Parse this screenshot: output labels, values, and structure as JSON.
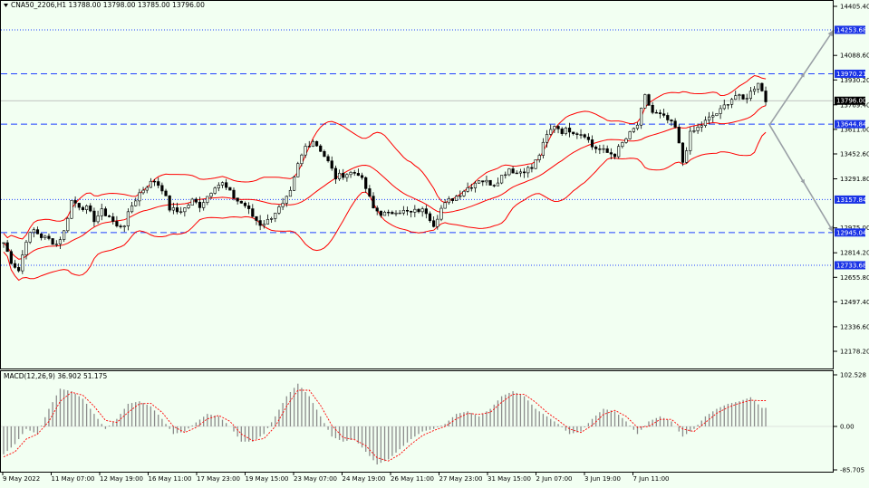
{
  "header": {
    "symbol_info": "CNA50_2206,H1  13788.00 13798.00 13785.00 13796.00",
    "macd_info": "MACD(12,26,9) 36.902 51.175"
  },
  "colors": {
    "background": "#f2fff2",
    "band": "#ff0000",
    "candle": "#000000",
    "level": "#2040ff",
    "label_bg": "#1a33e6",
    "arrow": "#9aa0a6",
    "histogram": "#8c8c8c",
    "signal": "#ff0000"
  },
  "chart_data": [
    {
      "type": "candlestick",
      "symbol": "CNA50_2206",
      "timeframe": "H1",
      "ohlc_last": {
        "open": 13788.0,
        "high": 13798.0,
        "low": 13785.0,
        "close": 13796.0
      },
      "price_axis": {
        "ticks": [
          "14405.40",
          "14088.60",
          "13930.20",
          "13769.40",
          "13611.00",
          "13452.60",
          "13291.80",
          "12975.00",
          "12814.20",
          "12655.80",
          "12497.40",
          "12336.60",
          "12178.20"
        ],
        "ylim": [
          12100,
          14420
        ]
      },
      "time_axis": {
        "ticks": [
          "9 May 2022",
          "11 May 07:00",
          "12 May 19:00",
          "16 May 11:00",
          "17 May 23:00",
          "19 May 15:00",
          "23 May 07:00",
          "24 May 19:00",
          "26 May 11:00",
          "27 May 23:00",
          "31 May 15:00",
          "2 Jun 07:00",
          "3 Jun 19:00",
          "7 Jun 11:00"
        ]
      },
      "levels": [
        {
          "label": "14253.68",
          "style": "dotted"
        },
        {
          "label": "13970.21",
          "style": "dashed"
        },
        {
          "label": "13644.84",
          "style": "dashed"
        },
        {
          "label": "13157.84",
          "style": "dotted"
        },
        {
          "label": "12945.04",
          "style": "dashed"
        },
        {
          "label": "12733.68",
          "style": "dotted"
        }
      ],
      "current_price": "13796.00",
      "close_path": [
        [
          0,
          12880
        ],
        [
          2,
          12760
        ],
        [
          4,
          12700
        ],
        [
          6,
          12900
        ],
        [
          8,
          12960
        ],
        [
          10,
          12920
        ],
        [
          12,
          12900
        ],
        [
          14,
          12870
        ],
        [
          16,
          12950
        ],
        [
          18,
          13150
        ],
        [
          20,
          13120
        ],
        [
          22,
          13100
        ],
        [
          24,
          13030
        ],
        [
          26,
          13080
        ],
        [
          28,
          13050
        ],
        [
          30,
          12980
        ],
        [
          32,
          13000
        ],
        [
          34,
          13120
        ],
        [
          36,
          13200
        ],
        [
          38,
          13250
        ],
        [
          40,
          13280
        ],
        [
          42,
          13230
        ],
        [
          44,
          13100
        ],
        [
          46,
          13080
        ],
        [
          48,
          13100
        ],
        [
          50,
          13150
        ],
        [
          52,
          13120
        ],
        [
          54,
          13180
        ],
        [
          56,
          13250
        ],
        [
          58,
          13260
        ],
        [
          60,
          13200
        ],
        [
          62,
          13150
        ],
        [
          64,
          13120
        ],
        [
          66,
          13050
        ],
        [
          68,
          13000
        ],
        [
          70,
          13020
        ],
        [
          72,
          13080
        ],
        [
          74,
          13120
        ],
        [
          76,
          13200
        ],
        [
          78,
          13380
        ],
        [
          80,
          13500
        ],
        [
          82,
          13540
        ],
        [
          84,
          13480
        ],
        [
          86,
          13400
        ],
        [
          88,
          13300
        ],
        [
          90,
          13320
        ],
        [
          92,
          13330
        ],
        [
          94,
          13330
        ],
        [
          96,
          13230
        ],
        [
          98,
          13100
        ],
        [
          100,
          13070
        ],
        [
          102,
          13060
        ],
        [
          104,
          13090
        ],
        [
          106,
          13080
        ],
        [
          108,
          13070
        ],
        [
          110,
          13090
        ],
        [
          112,
          13080
        ],
        [
          114,
          13000
        ],
        [
          116,
          13100
        ],
        [
          118,
          13150
        ],
        [
          120,
          13180
        ],
        [
          122,
          13220
        ],
        [
          124,
          13250
        ],
        [
          126,
          13290
        ],
        [
          128,
          13270
        ],
        [
          130,
          13260
        ],
        [
          132,
          13310
        ],
        [
          134,
          13360
        ],
        [
          136,
          13330
        ],
        [
          138,
          13350
        ],
        [
          140,
          13360
        ],
        [
          142,
          13450
        ],
        [
          144,
          13570
        ],
        [
          146,
          13640
        ],
        [
          148,
          13600
        ],
        [
          150,
          13610
        ],
        [
          152,
          13590
        ],
        [
          154,
          13580
        ],
        [
          156,
          13500
        ],
        [
          158,
          13480
        ],
        [
          160,
          13460
        ],
        [
          162,
          13450
        ],
        [
          164,
          13520
        ],
        [
          166,
          13580
        ],
        [
          168,
          13640
        ],
        [
          170,
          13820
        ],
        [
          172,
          13720
        ],
        [
          174,
          13700
        ],
        [
          176,
          13670
        ],
        [
          178,
          13620
        ],
        [
          180,
          13400
        ],
        [
          182,
          13580
        ],
        [
          184,
          13620
        ],
        [
          186,
          13660
        ],
        [
          188,
          13700
        ],
        [
          190,
          13730
        ],
        [
          192,
          13790
        ],
        [
          194,
          13830
        ],
        [
          196,
          13800
        ],
        [
          198,
          13850
        ],
        [
          200,
          13920
        ],
        [
          202,
          13796
        ]
      ],
      "arrows": [
        {
          "from": [
            203,
            13640
          ],
          "to": [
            220,
            14253.68
          ],
          "direction": "up"
        },
        {
          "from": [
            203,
            13640
          ],
          "to": [
            220,
            12945.04
          ],
          "direction": "down"
        }
      ]
    },
    {
      "type": "macd",
      "name": "MACD(12,26,9)",
      "macd": 36.902,
      "signal": 51.175,
      "y_ticks": [
        "102.528",
        "0.00",
        "-85.705"
      ],
      "ylim": [
        -85.705,
        102.528
      ],
      "histogram": [
        [
          0,
          -55
        ],
        [
          3,
          -35
        ],
        [
          6,
          -5
        ],
        [
          9,
          -15
        ],
        [
          12,
          35
        ],
        [
          15,
          75
        ],
        [
          18,
          70
        ],
        [
          21,
          55
        ],
        [
          24,
          25
        ],
        [
          27,
          -5
        ],
        [
          30,
          15
        ],
        [
          33,
          45
        ],
        [
          36,
          50
        ],
        [
          39,
          40
        ],
        [
          42,
          15
        ],
        [
          45,
          -15
        ],
        [
          48,
          -10
        ],
        [
          51,
          8
        ],
        [
          54,
          25
        ],
        [
          57,
          20
        ],
        [
          60,
          0
        ],
        [
          63,
          -30
        ],
        [
          66,
          -30
        ],
        [
          69,
          -15
        ],
        [
          72,
          20
        ],
        [
          75,
          60
        ],
        [
          78,
          85
        ],
        [
          81,
          60
        ],
        [
          84,
          20
        ],
        [
          87,
          -20
        ],
        [
          90,
          -30
        ],
        [
          93,
          -25
        ],
        [
          96,
          -50
        ],
        [
          99,
          -75
        ],
        [
          102,
          -65
        ],
        [
          105,
          -45
        ],
        [
          108,
          -25
        ],
        [
          111,
          -10
        ],
        [
          114,
          -5
        ],
        [
          117,
          5
        ],
        [
          120,
          25
        ],
        [
          123,
          30
        ],
        [
          126,
          20
        ],
        [
          129,
          35
        ],
        [
          132,
          60
        ],
        [
          135,
          70
        ],
        [
          138,
          60
        ],
        [
          141,
          35
        ],
        [
          144,
          20
        ],
        [
          147,
          5
        ],
        [
          150,
          -15
        ],
        [
          153,
          -10
        ],
        [
          156,
          15
        ],
        [
          159,
          35
        ],
        [
          162,
          30
        ],
        [
          165,
          10
        ],
        [
          168,
          -15
        ],
        [
          171,
          10
        ],
        [
          174,
          20
        ],
        [
          177,
          10
        ],
        [
          180,
          -20
        ],
        [
          183,
          -5
        ],
        [
          186,
          20
        ],
        [
          189,
          35
        ],
        [
          192,
          45
        ],
        [
          195,
          50
        ],
        [
          198,
          58
        ],
        [
          201,
          36.902
        ]
      ],
      "signal_line": [
        [
          0,
          -60
        ],
        [
          3,
          -50
        ],
        [
          6,
          -25
        ],
        [
          9,
          -15
        ],
        [
          12,
          10
        ],
        [
          15,
          50
        ],
        [
          18,
          68
        ],
        [
          21,
          62
        ],
        [
          24,
          40
        ],
        [
          27,
          12
        ],
        [
          30,
          8
        ],
        [
          33,
          28
        ],
        [
          36,
          45
        ],
        [
          39,
          46
        ],
        [
          42,
          28
        ],
        [
          45,
          0
        ],
        [
          48,
          -12
        ],
        [
          51,
          -2
        ],
        [
          54,
          15
        ],
        [
          57,
          22
        ],
        [
          60,
          10
        ],
        [
          63,
          -15
        ],
        [
          66,
          -28
        ],
        [
          69,
          -24
        ],
        [
          72,
          0
        ],
        [
          75,
          40
        ],
        [
          78,
          72
        ],
        [
          81,
          72
        ],
        [
          84,
          42
        ],
        [
          87,
          2
        ],
        [
          90,
          -22
        ],
        [
          93,
          -26
        ],
        [
          96,
          -38
        ],
        [
          99,
          -62
        ],
        [
          102,
          -68
        ],
        [
          105,
          -55
        ],
        [
          108,
          -35
        ],
        [
          111,
          -18
        ],
        [
          114,
          -8
        ],
        [
          117,
          0
        ],
        [
          120,
          15
        ],
        [
          123,
          26
        ],
        [
          126,
          24
        ],
        [
          129,
          28
        ],
        [
          132,
          48
        ],
        [
          135,
          64
        ],
        [
          138,
          64
        ],
        [
          141,
          48
        ],
        [
          144,
          28
        ],
        [
          147,
          12
        ],
        [
          150,
          -5
        ],
        [
          153,
          -12
        ],
        [
          156,
          2
        ],
        [
          159,
          24
        ],
        [
          162,
          32
        ],
        [
          165,
          20
        ],
        [
          168,
          -2
        ],
        [
          171,
          0
        ],
        [
          174,
          14
        ],
        [
          177,
          14
        ],
        [
          180,
          -5
        ],
        [
          183,
          -10
        ],
        [
          186,
          8
        ],
        [
          189,
          26
        ],
        [
          192,
          38
        ],
        [
          195,
          46
        ],
        [
          198,
          52
        ],
        [
          201,
          51.175
        ]
      ]
    }
  ]
}
